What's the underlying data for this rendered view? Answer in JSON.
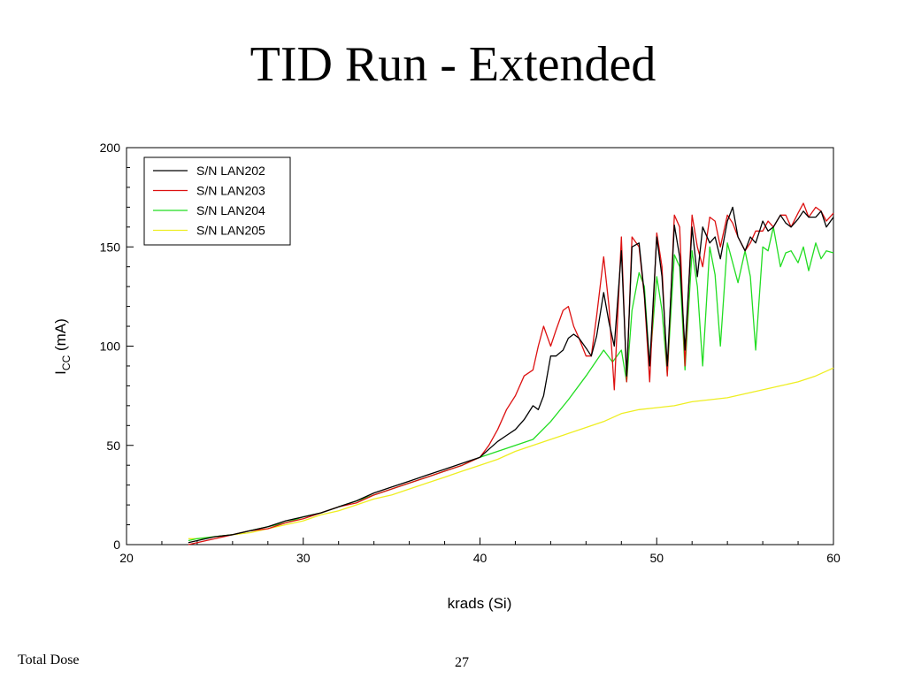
{
  "slide": {
    "title": "TID Run - Extended",
    "footer_left": "Total Dose",
    "page_number": "27"
  },
  "chart_data": {
    "type": "line",
    "title": "",
    "xlabel": "krads (Si)",
    "ylabel_main": "I",
    "ylabel_sub": "CC",
    "ylabel_unit": " (mA)",
    "xlim": [
      20,
      60
    ],
    "ylim": [
      0,
      200
    ],
    "xticks": [
      20,
      30,
      40,
      50,
      60
    ],
    "yticks": [
      0,
      50,
      100,
      150,
      200
    ],
    "grid": false,
    "legend_position": "top-left",
    "series": [
      {
        "name": "S/N LAN202",
        "color": "#000000",
        "x": [
          23.5,
          24,
          25,
          26,
          27,
          28,
          29,
          30,
          31,
          32,
          33,
          34,
          35,
          36,
          37,
          38,
          39,
          40,
          40.5,
          41,
          41.5,
          42,
          42.5,
          43,
          43.3,
          43.6,
          44,
          44.3,
          44.7,
          45,
          45.3,
          45.6,
          46,
          46.3,
          46.6,
          47,
          47.3,
          47.6,
          48,
          48.3,
          48.6,
          49,
          49.3,
          49.6,
          50,
          50.3,
          50.6,
          51,
          51.3,
          51.6,
          52,
          52.3,
          52.6,
          53,
          53.3,
          53.6,
          54,
          54.3,
          54.6,
          55,
          55.3,
          55.6,
          56,
          56.3,
          56.6,
          57,
          57.3,
          57.6,
          58,
          58.3,
          58.6,
          59,
          59.3,
          59.6,
          60
        ],
        "values": [
          1,
          2,
          4,
          5,
          7,
          9,
          12,
          14,
          16,
          19,
          22,
          26,
          29,
          32,
          35,
          38,
          41,
          44,
          48,
          52,
          55,
          58,
          63,
          70,
          68,
          75,
          95,
          95,
          98,
          104,
          106,
          104,
          99,
          95,
          105,
          127,
          112,
          100,
          148,
          85,
          150,
          152,
          126,
          90,
          155,
          135,
          90,
          161,
          145,
          98,
          160,
          135,
          160,
          152,
          155,
          144,
          163,
          170,
          155,
          148,
          155,
          152,
          163,
          158,
          160,
          166,
          162,
          160,
          164,
          168,
          165,
          165,
          168,
          160,
          165
        ]
      },
      {
        "name": "S/N LAN203",
        "color": "#dd1111",
        "x": [
          23.5,
          24,
          25,
          26,
          27,
          28,
          29,
          30,
          31,
          32,
          33,
          34,
          35,
          36,
          37,
          38,
          39,
          40,
          40.5,
          41,
          41.5,
          42,
          42.5,
          43,
          43.3,
          43.6,
          44,
          44.3,
          44.7,
          45,
          45.3,
          45.6,
          46,
          46.3,
          46.6,
          47,
          47.3,
          47.6,
          48,
          48.3,
          48.6,
          49,
          49.3,
          49.6,
          50,
          50.3,
          50.6,
          51,
          51.3,
          51.6,
          52,
          52.3,
          52.6,
          53,
          53.3,
          53.6,
          54,
          54.3,
          54.6,
          55,
          55.3,
          55.6,
          56,
          56.3,
          56.6,
          57,
          57.3,
          57.6,
          58,
          58.3,
          58.6,
          59,
          59.3,
          59.6,
          60
        ],
        "values": [
          0,
          1,
          3,
          5,
          7,
          8,
          11,
          13,
          16,
          19,
          21,
          25,
          28,
          31,
          34,
          37,
          40,
          44,
          50,
          58,
          68,
          75,
          85,
          88,
          100,
          110,
          100,
          108,
          118,
          120,
          110,
          104,
          95,
          95,
          115,
          145,
          120,
          78,
          155,
          82,
          155,
          150,
          125,
          82,
          157,
          140,
          85,
          166,
          160,
          90,
          166,
          150,
          140,
          165,
          163,
          150,
          166,
          162,
          155,
          148,
          152,
          158,
          158,
          163,
          160,
          166,
          166,
          160,
          167,
          172,
          165,
          170,
          168,
          163,
          167
        ]
      },
      {
        "name": "S/N LAN204",
        "color": "#22dd22",
        "x": [
          23.5,
          24,
          25,
          26,
          27,
          28,
          29,
          30,
          31,
          32,
          33,
          34,
          35,
          36,
          37,
          38,
          39,
          40,
          41,
          42,
          43,
          44,
          45,
          46,
          47,
          47.5,
          48,
          48.3,
          48.6,
          49,
          49.3,
          49.6,
          50,
          50.3,
          50.6,
          51,
          51.3,
          51.6,
          52,
          52.3,
          52.6,
          53,
          53.3,
          53.6,
          54,
          54.3,
          54.6,
          55,
          55.3,
          55.6,
          56,
          56.3,
          56.6,
          57,
          57.3,
          57.6,
          58,
          58.3,
          58.6,
          59,
          59.3,
          59.6,
          60
        ],
        "values": [
          2,
          3,
          4,
          5,
          7,
          9,
          11,
          14,
          16,
          19,
          22,
          25,
          28,
          31,
          34,
          37,
          40,
          44,
          47,
          50,
          53,
          62,
          73,
          85,
          98,
          92,
          98,
          82,
          118,
          137,
          130,
          90,
          135,
          118,
          86,
          146,
          140,
          88,
          148,
          130,
          90,
          150,
          136,
          100,
          152,
          142,
          132,
          148,
          135,
          98,
          150,
          148,
          160,
          140,
          147,
          148,
          142,
          150,
          138,
          152,
          144,
          148,
          147
        ]
      },
      {
        "name": "S/N LAN205",
        "color": "#eeee22",
        "x": [
          23.5,
          24,
          25,
          26,
          27,
          28,
          29,
          30,
          31,
          32,
          33,
          34,
          35,
          36,
          37,
          38,
          39,
          40,
          41,
          42,
          43,
          44,
          45,
          46,
          47,
          48,
          49,
          50,
          51,
          52,
          53,
          54,
          55,
          56,
          57,
          58,
          59,
          60
        ],
        "values": [
          3,
          3,
          4,
          5,
          6,
          8,
          10,
          12,
          15,
          17,
          20,
          23,
          25,
          28,
          31,
          34,
          37,
          40,
          43,
          47,
          50,
          53,
          56,
          59,
          62,
          66,
          68,
          69,
          70,
          72,
          73,
          74,
          76,
          78,
          80,
          82,
          85,
          89
        ]
      }
    ]
  }
}
